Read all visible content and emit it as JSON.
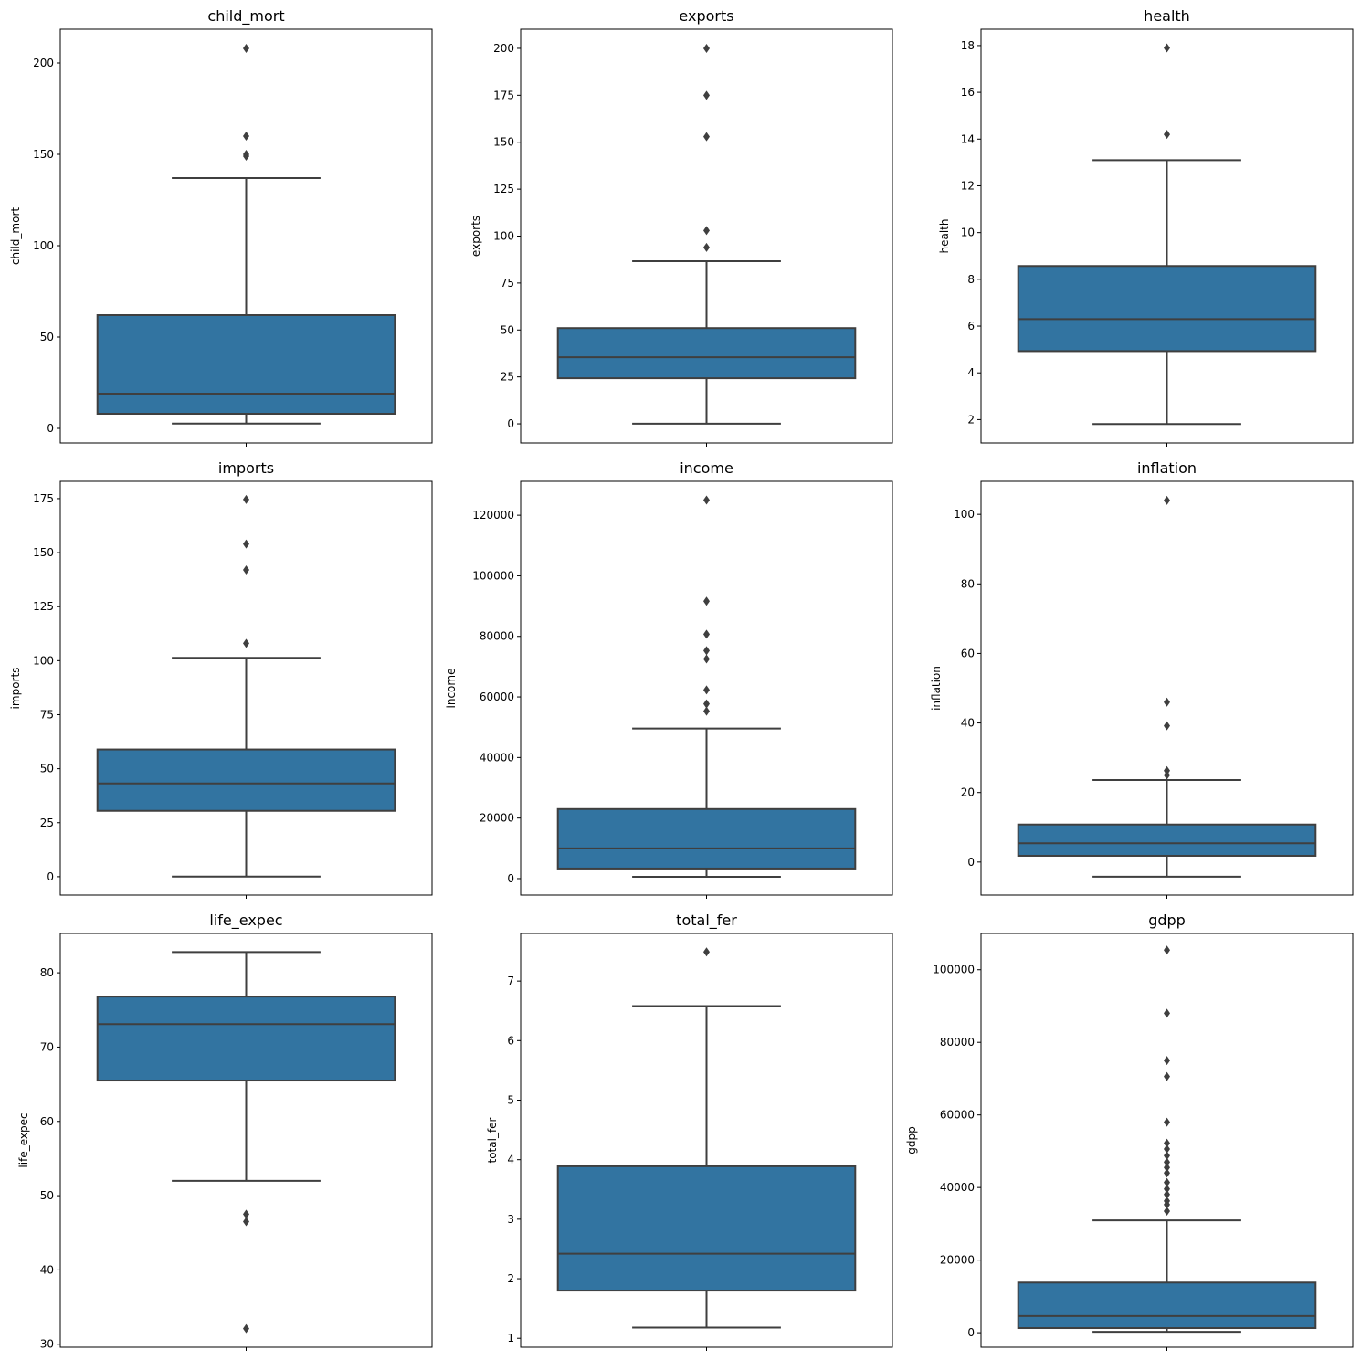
{
  "chart_data": [
    {
      "type": "box",
      "title": "child_mort",
      "ylabel": "child_mort",
      "ylim": [
        -8,
        218.5
      ],
      "ticks": [
        0,
        50,
        100,
        150,
        200
      ],
      "whisker_low": 2.6,
      "q1": 8,
      "median": 19,
      "q3": 62,
      "whisker_high": 137,
      "outliers": [
        208,
        160,
        150,
        149
      ]
    },
    {
      "type": "box",
      "title": "exports",
      "ylabel": "exports",
      "ylim": [
        -10.2,
        210.2
      ],
      "ticks": [
        0,
        25,
        50,
        75,
        100,
        125,
        150,
        175,
        200
      ],
      "whisker_low": 0.1,
      "q1": 24.3,
      "median": 35.5,
      "q3": 51,
      "whisker_high": 86.6,
      "outliers": [
        200,
        175,
        153,
        103,
        94
      ]
    },
    {
      "type": "box",
      "title": "health",
      "ylabel": "health",
      "ylim": [
        1.0,
        18.7
      ],
      "ticks": [
        2,
        4,
        6,
        8,
        10,
        12,
        14,
        16,
        18
      ],
      "whisker_low": 1.81,
      "q1": 4.93,
      "median": 6.3,
      "q3": 8.57,
      "whisker_high": 13.1,
      "outliers": [
        17.9,
        14.2
      ]
    },
    {
      "type": "box",
      "title": "imports",
      "ylabel": "imports",
      "ylim": [
        -8.5,
        183
      ],
      "ticks": [
        0,
        25,
        50,
        75,
        100,
        125,
        150,
        175
      ],
      "whisker_low": 0.07,
      "q1": 30.5,
      "median": 43.2,
      "q3": 58.9,
      "whisker_high": 101.3,
      "outliers": [
        174.6,
        154,
        142,
        108
      ]
    },
    {
      "type": "box",
      "title": "income",
      "ylabel": "income",
      "ylim": [
        -5440,
        131200
      ],
      "ticks": [
        0,
        20000,
        40000,
        60000,
        80000,
        100000,
        120000
      ],
      "whisker_low": 609,
      "q1": 3325,
      "median": 9975,
      "q3": 22975,
      "whisker_high": 49580,
      "outliers": [
        125000,
        91600,
        80700,
        75300,
        72550,
        62300,
        57700,
        55300
      ]
    },
    {
      "type": "box",
      "title": "inflation",
      "ylabel": "inflation",
      "ylim": [
        -9.5,
        109.5
      ],
      "ticks": [
        0,
        20,
        40,
        60,
        80,
        100
      ],
      "whisker_low": -4.2,
      "q1": 1.8,
      "median": 5.4,
      "q3": 10.8,
      "whisker_high": 23.6,
      "outliers": [
        104,
        46,
        39.2,
        26.3,
        25.0
      ]
    },
    {
      "type": "box",
      "title": "life_expec",
      "ylabel": "life_expec",
      "ylim": [
        29.6,
        85.3
      ],
      "ticks": [
        30,
        40,
        50,
        60,
        70,
        80
      ],
      "whisker_low": 52.0,
      "q1": 65.5,
      "median": 73.1,
      "q3": 76.8,
      "whisker_high": 82.8,
      "outliers": [
        47.5,
        46.5,
        32.1
      ]
    },
    {
      "type": "box",
      "title": "total_fer",
      "ylabel": "total_fer",
      "ylim": [
        0.85,
        7.8
      ],
      "ticks": [
        1,
        2,
        3,
        4,
        5,
        6,
        7
      ],
      "whisker_low": 1.18,
      "q1": 1.8,
      "median": 2.42,
      "q3": 3.89,
      "whisker_high": 6.58,
      "outliers": [
        7.49
      ]
    },
    {
      "type": "box",
      "title": "gdpp",
      "ylabel": "gdpp",
      "ylim": [
        -4000,
        110000
      ],
      "ticks": [
        0,
        20000,
        40000,
        60000,
        80000,
        100000
      ],
      "whisker_low": 255,
      "q1": 1280,
      "median": 4600,
      "q3": 13800,
      "whisker_high": 30950,
      "outliers": [
        105400,
        88000,
        75000,
        70600,
        58000,
        52200,
        50600,
        48800,
        47000,
        45500,
        44000,
        41400,
        39600,
        38100,
        36300,
        35300,
        33500
      ]
    }
  ],
  "colors": {
    "box": "#3274a1",
    "line": "#3f3f3f"
  }
}
